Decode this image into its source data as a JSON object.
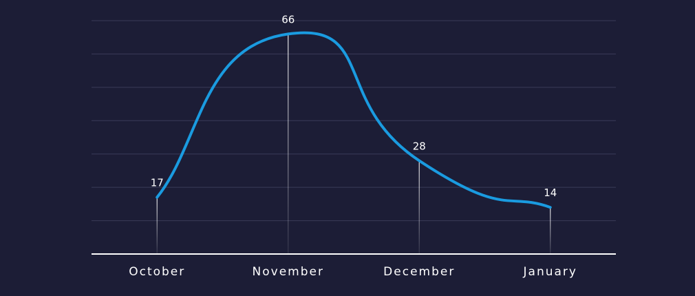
{
  "chart_data": {
    "type": "line",
    "categories": [
      "October",
      "November",
      "December",
      "January"
    ],
    "values": [
      17,
      66,
      28,
      14
    ],
    "color": "#1a9be0",
    "ylim": [
      0,
      70
    ],
    "yticks": [
      0,
      10,
      20,
      30,
      40,
      50,
      60,
      70
    ],
    "grid": true
  }
}
